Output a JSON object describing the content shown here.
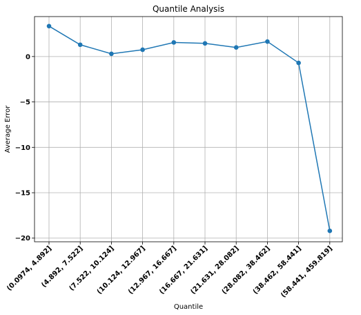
{
  "chart_data": {
    "type": "line",
    "title": "Quantile Analysis",
    "xlabel": "Quantile",
    "ylabel": "Average Error",
    "categories": [
      "(0.0974, 4.892]",
      "(4.892, 7.522]",
      "(7.522, 10.124]",
      "(10.124, 12.967]",
      "(12.967, 16.667]",
      "(16.667, 21.631]",
      "(21.631, 28.082]",
      "(28.082, 38.462]",
      "(38.462, 58.441]",
      "(58.441, 459.819]"
    ],
    "values": [
      3.35,
      1.3,
      0.3,
      0.75,
      1.55,
      1.45,
      1.0,
      1.65,
      -0.7,
      -19.2
    ],
    "yticks": [
      0,
      -5,
      -10,
      -15,
      -20
    ],
    "ylim": [
      -20.4,
      4.4
    ],
    "grid": true,
    "color": "#1f77b4"
  }
}
